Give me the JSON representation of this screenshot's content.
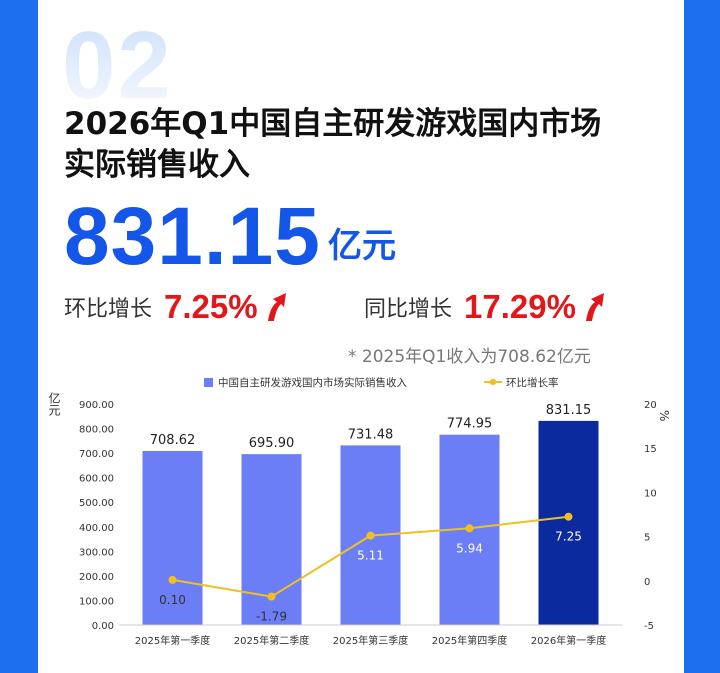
{
  "header": {
    "section_number": "02",
    "title": "2026年Q1中国自主研发游戏国内市场\n实际销售收入",
    "value": "831.15",
    "unit": "亿元"
  },
  "growth": {
    "qoq_label": "环比增长",
    "qoq_value": "7.25%",
    "yoy_label": "同比增长",
    "yoy_value": "17.29%"
  },
  "note": "* 2025年Q1收入为708.62亿元",
  "colors": {
    "bar": "#6c7ef5",
    "bar_highlight": "#0b2a9e",
    "line": "#f0c020",
    "accent_red": "#e0181b",
    "accent_blue": "#1456e8"
  },
  "chart_data": {
    "type": "bar",
    "categories": [
      "2025年第一季度",
      "2025年第二季度",
      "2025年第三季度",
      "2025年第四季度",
      "2026年第一季度"
    ],
    "series": [
      {
        "name": "中国自主研发游戏国内市场实际销售收入",
        "type": "bar",
        "axis": "left",
        "values": [
          708.62,
          695.9,
          731.48,
          774.95,
          831.15
        ],
        "labels": [
          "708.62",
          "695.90",
          "731.48",
          "774.95",
          "831.15"
        ]
      },
      {
        "name": "环比增长率",
        "type": "line",
        "axis": "right",
        "values": [
          0.1,
          -1.79,
          5.11,
          5.94,
          7.25
        ],
        "labels": [
          "0.10",
          "-1.79",
          "5.11",
          "5.94",
          "7.25"
        ]
      }
    ],
    "y_left": {
      "label": "亿元",
      "ylim": [
        0,
        900
      ],
      "ticks": [
        0,
        100,
        200,
        300,
        400,
        500,
        600,
        700,
        800,
        900
      ],
      "tick_labels": [
        "0.00",
        "100.00",
        "200.00",
        "300.00",
        "400.00",
        "500.00",
        "600.00",
        "700.00",
        "800.00",
        "900.00"
      ]
    },
    "y_right": {
      "label": "%",
      "ylim": [
        -5,
        20
      ],
      "ticks": [
        -5,
        0,
        5,
        10,
        15,
        20
      ],
      "tick_labels": [
        "-5",
        "0",
        "5",
        "10",
        "15",
        "20"
      ]
    },
    "legend_position": "top",
    "grid": false
  }
}
